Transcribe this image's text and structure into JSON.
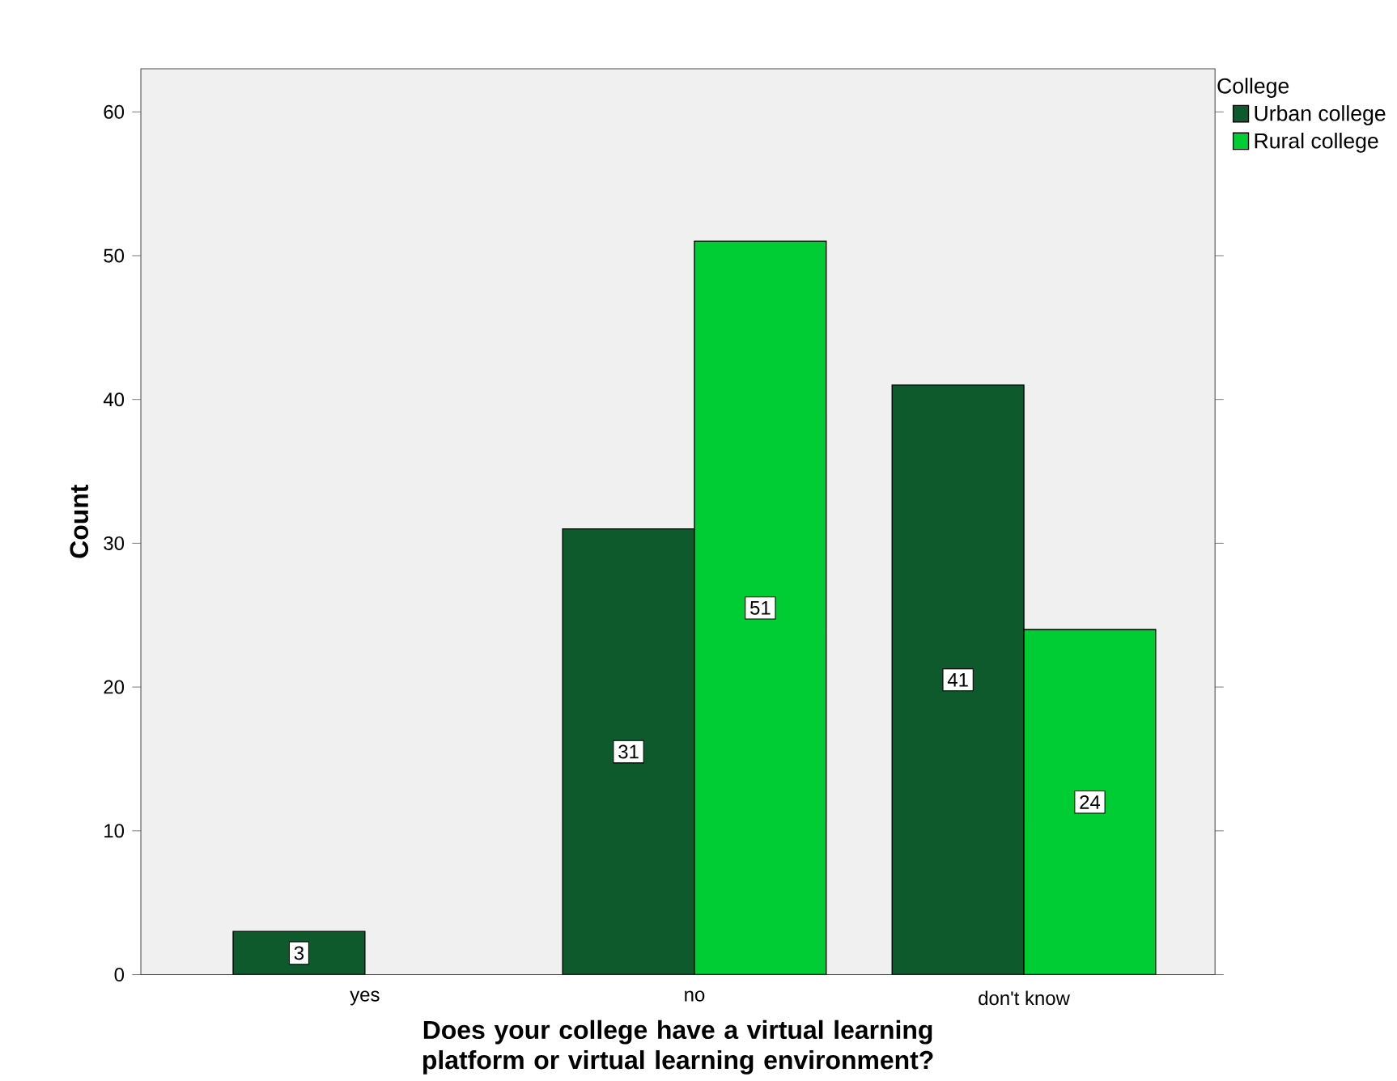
{
  "chart_data": {
    "type": "bar",
    "xlabel": "Does your college have a virtual learning platform or virtual learning environment?",
    "ylabel": "Count",
    "legend_title": "College",
    "categories": [
      "yes",
      "no",
      "don't know"
    ],
    "series": [
      {
        "name": "Urban college",
        "color": "#0e5a2c",
        "values": [
          3,
          31,
          41
        ]
      },
      {
        "name": "Rural college",
        "color": "#00cc33",
        "values": [
          null,
          51,
          24
        ]
      }
    ],
    "ylim": [
      0,
      63
    ],
    "yticks": [
      0,
      10,
      20,
      30,
      40,
      50,
      60
    ],
    "data_labels": true,
    "legend": "top right",
    "grid": false
  }
}
